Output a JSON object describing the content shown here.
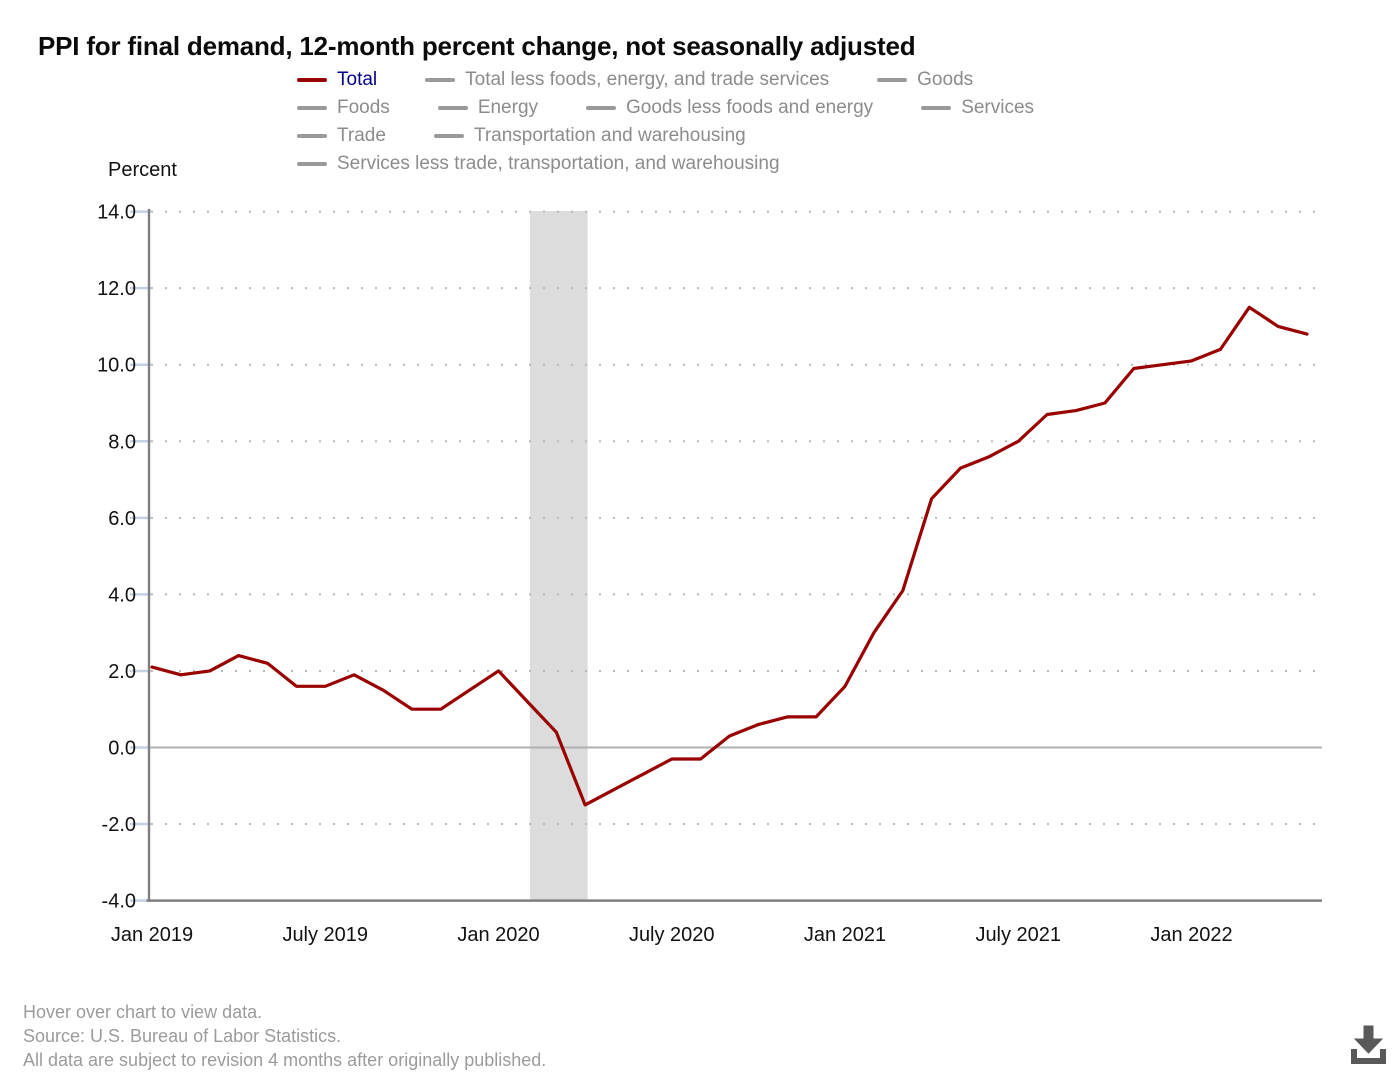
{
  "title": "PPI for final demand, 12-month percent change, not seasonally adjusted",
  "y_axis_title": "Percent",
  "colors": {
    "total_line": "#990000",
    "active_legend_text": "#00008b",
    "inactive_legend_text": "#8c8c8c",
    "legend_swatch_inactive": "#999999",
    "recession_band": "#dcdcdc",
    "gridline": "#b9b9b9",
    "zero_line": "#b0b0b0",
    "axis": "#7f7f7f",
    "tick_mark": "#c5d0e5",
    "axis_label_text": "#111111",
    "footer_text": "#9b9b9b",
    "download_icon": "#595959"
  },
  "legend": {
    "rows": [
      [
        {
          "label": "Total",
          "active": true
        },
        {
          "label": "Total less foods, energy, and trade services",
          "active": false
        },
        {
          "label": "Goods",
          "active": false
        }
      ],
      [
        {
          "label": "Foods",
          "active": false
        },
        {
          "label": "Energy",
          "active": false
        },
        {
          "label": "Goods less foods and energy",
          "active": false
        },
        {
          "label": "Services",
          "active": false
        }
      ],
      [
        {
          "label": "Trade",
          "active": false
        },
        {
          "label": "Transportation and warehousing",
          "active": false
        }
      ],
      [
        {
          "label": "Services less trade, transportation, and warehousing",
          "active": false
        }
      ]
    ]
  },
  "chart_data": {
    "type": "line",
    "title": "PPI for final demand, 12-month percent change, not seasonally adjusted",
    "xlabel": "",
    "ylabel": "Percent",
    "ylim": [
      -4.0,
      14.0
    ],
    "y_ticks": [
      14.0,
      12.0,
      10.0,
      8.0,
      6.0,
      4.0,
      2.0,
      0.0,
      -2.0,
      -4.0
    ],
    "grid": "dotted-horizontal",
    "legend_position": "top",
    "x_tick_labels": [
      "Jan 2019",
      "July 2019",
      "Jan 2020",
      "July 2020",
      "Jan 2021",
      "July 2021",
      "Jan 2022"
    ],
    "x_tick_month_indices": [
      0,
      6,
      12,
      18,
      24,
      30,
      36
    ],
    "months": [
      "Jan 2019",
      "Feb 2019",
      "Mar 2019",
      "Apr 2019",
      "May 2019",
      "Jun 2019",
      "Jul 2019",
      "Aug 2019",
      "Sep 2019",
      "Oct 2019",
      "Nov 2019",
      "Dec 2019",
      "Jan 2020",
      "Feb 2020",
      "Mar 2020",
      "Apr 2020",
      "May 2020",
      "Jun 2020",
      "Jul 2020",
      "Aug 2020",
      "Sep 2020",
      "Oct 2020",
      "Nov 2020",
      "Dec 2020",
      "Jan 2021",
      "Feb 2021",
      "Mar 2021",
      "Apr 2021",
      "May 2021",
      "Jun 2021",
      "Jul 2021",
      "Aug 2021",
      "Sep 2021",
      "Oct 2021",
      "Nov 2021",
      "Dec 2021",
      "Jan 2022",
      "Feb 2022",
      "Mar 2022",
      "Apr 2022",
      "May 2022"
    ],
    "series": [
      {
        "name": "Total",
        "values": [
          2.1,
          1.9,
          2.0,
          2.4,
          2.2,
          1.6,
          1.6,
          1.9,
          1.5,
          1.0,
          1.0,
          1.5,
          2.0,
          1.2,
          0.4,
          -1.5,
          -1.1,
          -0.7,
          -0.3,
          -0.3,
          0.3,
          0.6,
          0.8,
          0.8,
          1.6,
          3.0,
          4.1,
          6.5,
          7.3,
          7.6,
          8.0,
          8.7,
          8.8,
          9.0,
          9.9,
          10.0,
          10.1,
          10.4,
          11.5,
          11.0,
          10.8
        ]
      }
    ],
    "recession_band": {
      "start_month": "Feb 2020",
      "end_month": "Apr 2020",
      "start_index": 13,
      "end_index": 15
    }
  },
  "footer": {
    "line1": "Hover over chart to view data.",
    "line2": "Source: U.S. Bureau of Labor Statistics.",
    "line3": "All data are subject to revision 4 months after originally published."
  },
  "icons": {
    "download": "download-arrow-into-tray-icon"
  }
}
